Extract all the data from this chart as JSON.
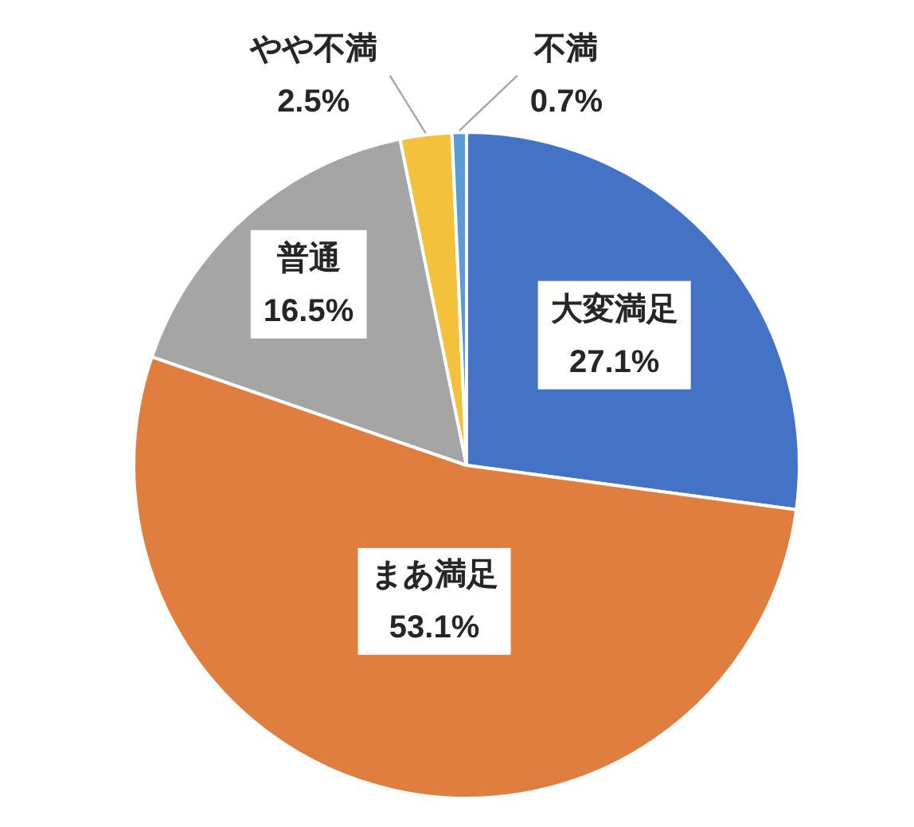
{
  "chart_data": {
    "type": "pie",
    "categories": [
      "大変満足",
      "まあ満足",
      "普通",
      "やや不満",
      "不満"
    ],
    "values": [
      27.1,
      53.1,
      16.5,
      2.5,
      0.7
    ],
    "colors": [
      "#4472c4",
      "#e07e3f",
      "#a5a5a5",
      "#f4c13c",
      "#5b9bd5"
    ],
    "value_labels": [
      "27.1%",
      "53.1%",
      "16.5%",
      "2.5%",
      "0.7%"
    ]
  }
}
